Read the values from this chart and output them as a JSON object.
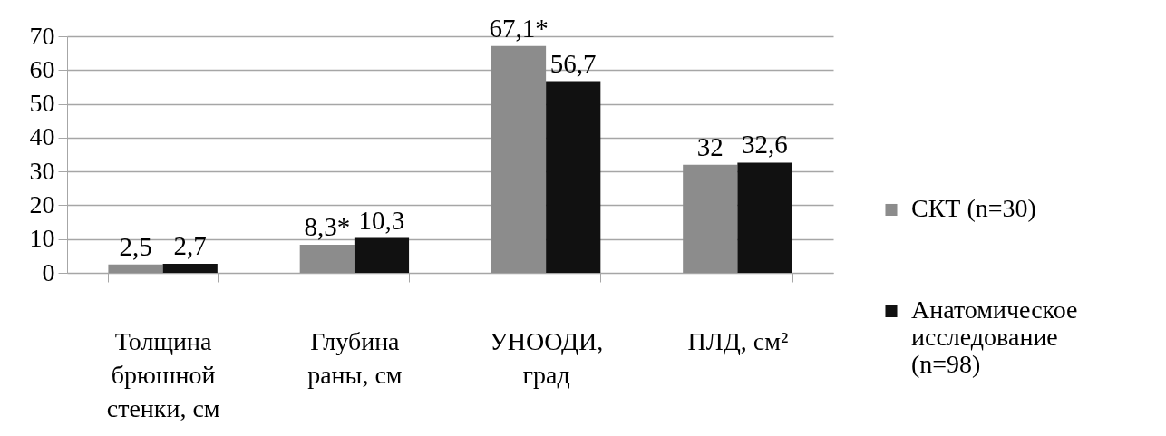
{
  "chart_data": {
    "type": "bar",
    "categories": [
      "Толщина брюшной стенки, см",
      "Глубина раны, см",
      "УНООДИ, град",
      "ПЛД, см²"
    ],
    "series": [
      {
        "name": "СКТ (n=30)",
        "color": "#8c8c8c",
        "values": [
          2.5,
          8.3,
          67.1,
          32
        ],
        "value_labels": [
          "2,5",
          "8,3*",
          "67,1*",
          "32"
        ]
      },
      {
        "name": "Анатомическое исследование (n=98)",
        "color": "#111111",
        "values": [
          2.7,
          10.3,
          56.7,
          32.6
        ],
        "value_labels": [
          "2,7",
          "10,3",
          "56,7",
          "32,6"
        ]
      }
    ],
    "ylim": [
      0,
      70
    ],
    "yticks": [
      0,
      10,
      20,
      30,
      40,
      50,
      60,
      70
    ],
    "grid": "y",
    "legend": "right"
  }
}
